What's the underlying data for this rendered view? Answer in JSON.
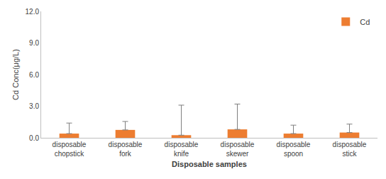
{
  "chart_data": {
    "type": "bar",
    "x_label": "Disposable samples",
    "y_label": "Cd Conc(μg/L)",
    "categories": [
      "disposable chopstick",
      "disposable fork",
      "disposable knife",
      "disposable skewer",
      "disposable spoon",
      "disposable stick"
    ],
    "series": [
      {
        "name": "Cd",
        "color": "#ed7d31",
        "values": [
          0.4,
          0.75,
          0.25,
          0.8,
          0.4,
          0.5
        ],
        "errors": [
          1.0,
          0.8,
          2.85,
          2.4,
          0.8,
          0.8
        ]
      }
    ],
    "ylim": [
      0,
      12
    ],
    "yticks": [
      {
        "value": 0,
        "label": "0.0"
      },
      {
        "value": 3,
        "label": "3.0"
      },
      {
        "value": 6,
        "label": "6.0"
      },
      {
        "value": 9,
        "label": "9.0"
      },
      {
        "value": 12,
        "label": "12.0"
      }
    ],
    "grid": false,
    "legend": "top-right"
  }
}
